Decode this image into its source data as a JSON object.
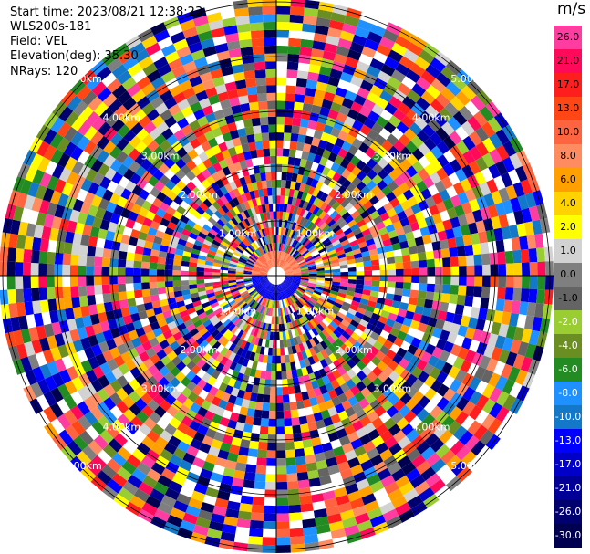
{
  "header": {
    "start_time": "Start time: 2023/08/21 12:38:23",
    "instrument": "WLS200s-181",
    "field": "Field: VEL",
    "elevation": "Elevation(deg): 35.30",
    "nrays": "NRays: 120"
  },
  "chart_data": {
    "type": "ppi",
    "field": "VEL",
    "units": "m/s",
    "nrays": 120,
    "range_ring_labels_km": [
      "1.00km",
      "2.00km",
      "3.00km",
      "4.00km",
      "5.00km"
    ],
    "colorbar": {
      "unit_label": "m/s",
      "levels": [
        {
          "label": "26.0",
          "color": "#ff3ca0"
        },
        {
          "label": "21.0",
          "color": "#ff0a5a"
        },
        {
          "label": "17.0",
          "color": "#ff1e1e"
        },
        {
          "label": "13.0",
          "color": "#ff4614"
        },
        {
          "label": "10.0",
          "color": "#ff6440"
        },
        {
          "label": "8.0",
          "color": "#ff8c60"
        },
        {
          "label": "6.0",
          "color": "#ffa000"
        },
        {
          "label": "4.0",
          "color": "#ffd200"
        },
        {
          "label": "2.0",
          "color": "#ffff00"
        },
        {
          "label": "1.0",
          "color": "#d2d2d2"
        },
        {
          "label": "0.0",
          "color": "#7f7f7f"
        },
        {
          "label": "-1.0",
          "color": "#646464"
        },
        {
          "label": "-2.0",
          "color": "#9acd32"
        },
        {
          "label": "-4.0",
          "color": "#6b8e23"
        },
        {
          "label": "-6.0",
          "color": "#228b22"
        },
        {
          "label": "-8.0",
          "color": "#1e90ff"
        },
        {
          "label": "-10.0",
          "color": "#1478c8"
        },
        {
          "label": "-13.0",
          "color": "#0000ff"
        },
        {
          "label": "-17.0",
          "color": "#0000c8"
        },
        {
          "label": "-21.0",
          "color": "#000096"
        },
        {
          "label": "-26.0",
          "color": "#00006e"
        },
        {
          "label": "-30.0",
          "color": "#000050"
        }
      ]
    }
  }
}
